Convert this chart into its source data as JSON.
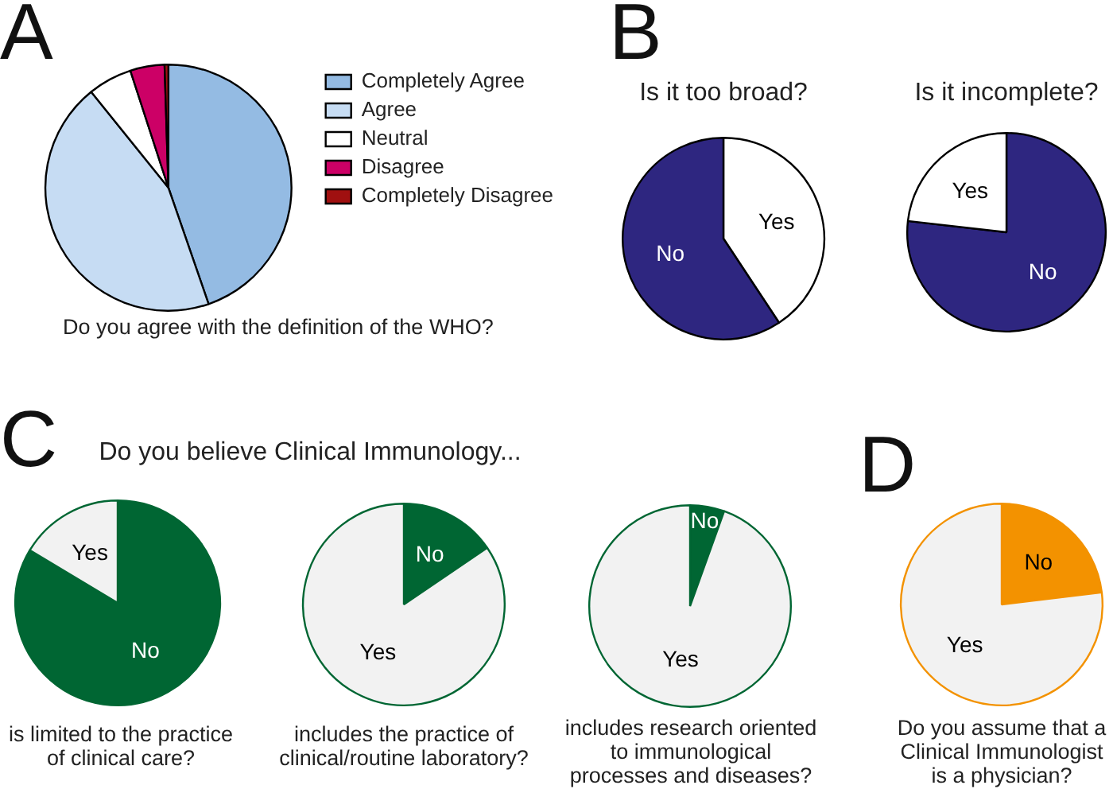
{
  "chart_data": [
    {
      "type": "pie",
      "xlabel": "Do you agree with the definition of the WHO?",
      "annotations": [
        "A"
      ],
      "categories": [
        "Completely Agree",
        "Agree",
        "Neutral",
        "Disagree",
        "Completely Disagree"
      ],
      "values": [
        44.7,
        44.5,
        5.8,
        4.5,
        0.5
      ],
      "colors": [
        "#94bbe3",
        "#c6dcf3",
        "#ffffff",
        "#cc0066",
        "#a01010"
      ],
      "legend": "right"
    },
    {
      "type": "pie",
      "title": "Is it too broad?",
      "annotations": [
        "B"
      ],
      "categories": [
        "Yes",
        "No"
      ],
      "values": [
        40.7,
        59.3
      ],
      "colors": [
        "#ffffff",
        "#2e2680"
      ]
    },
    {
      "type": "pie",
      "title": "Is it incomplete?",
      "categories": [
        "No",
        "Yes"
      ],
      "values": [
        76.8,
        23.2
      ],
      "colors": [
        "#2e2680",
        "#ffffff"
      ]
    },
    {
      "type": "pie",
      "title": "Do you believe Clinical Immunology...",
      "xlabel": "is limited to the practice of clinical care?",
      "annotations": [
        "C"
      ],
      "categories": [
        "No",
        "Yes"
      ],
      "values": [
        83.6,
        16.4
      ],
      "colors": [
        "#006633",
        "#f2f2f2"
      ]
    },
    {
      "type": "pie",
      "xlabel": "includes the practice of clinical/routine laboratory?",
      "categories": [
        "No",
        "Yes"
      ],
      "values": [
        15.5,
        84.5
      ],
      "colors": [
        "#006633",
        "#f2f2f2"
      ]
    },
    {
      "type": "pie",
      "xlabel": "includes research oriented to immunological processes and diseases?",
      "categories": [
        "No",
        "Yes"
      ],
      "values": [
        5.5,
        94.5
      ],
      "colors": [
        "#006633",
        "#f2f2f2"
      ]
    },
    {
      "type": "pie",
      "xlabel": "Do you assume that a Clinical Immunologist is a physician?",
      "annotations": [
        "D"
      ],
      "categories": [
        "No",
        "Yes"
      ],
      "values": [
        23.1,
        76.9
      ],
      "colors": [
        "#f39200",
        "#f2f2f2"
      ]
    }
  ]
}
